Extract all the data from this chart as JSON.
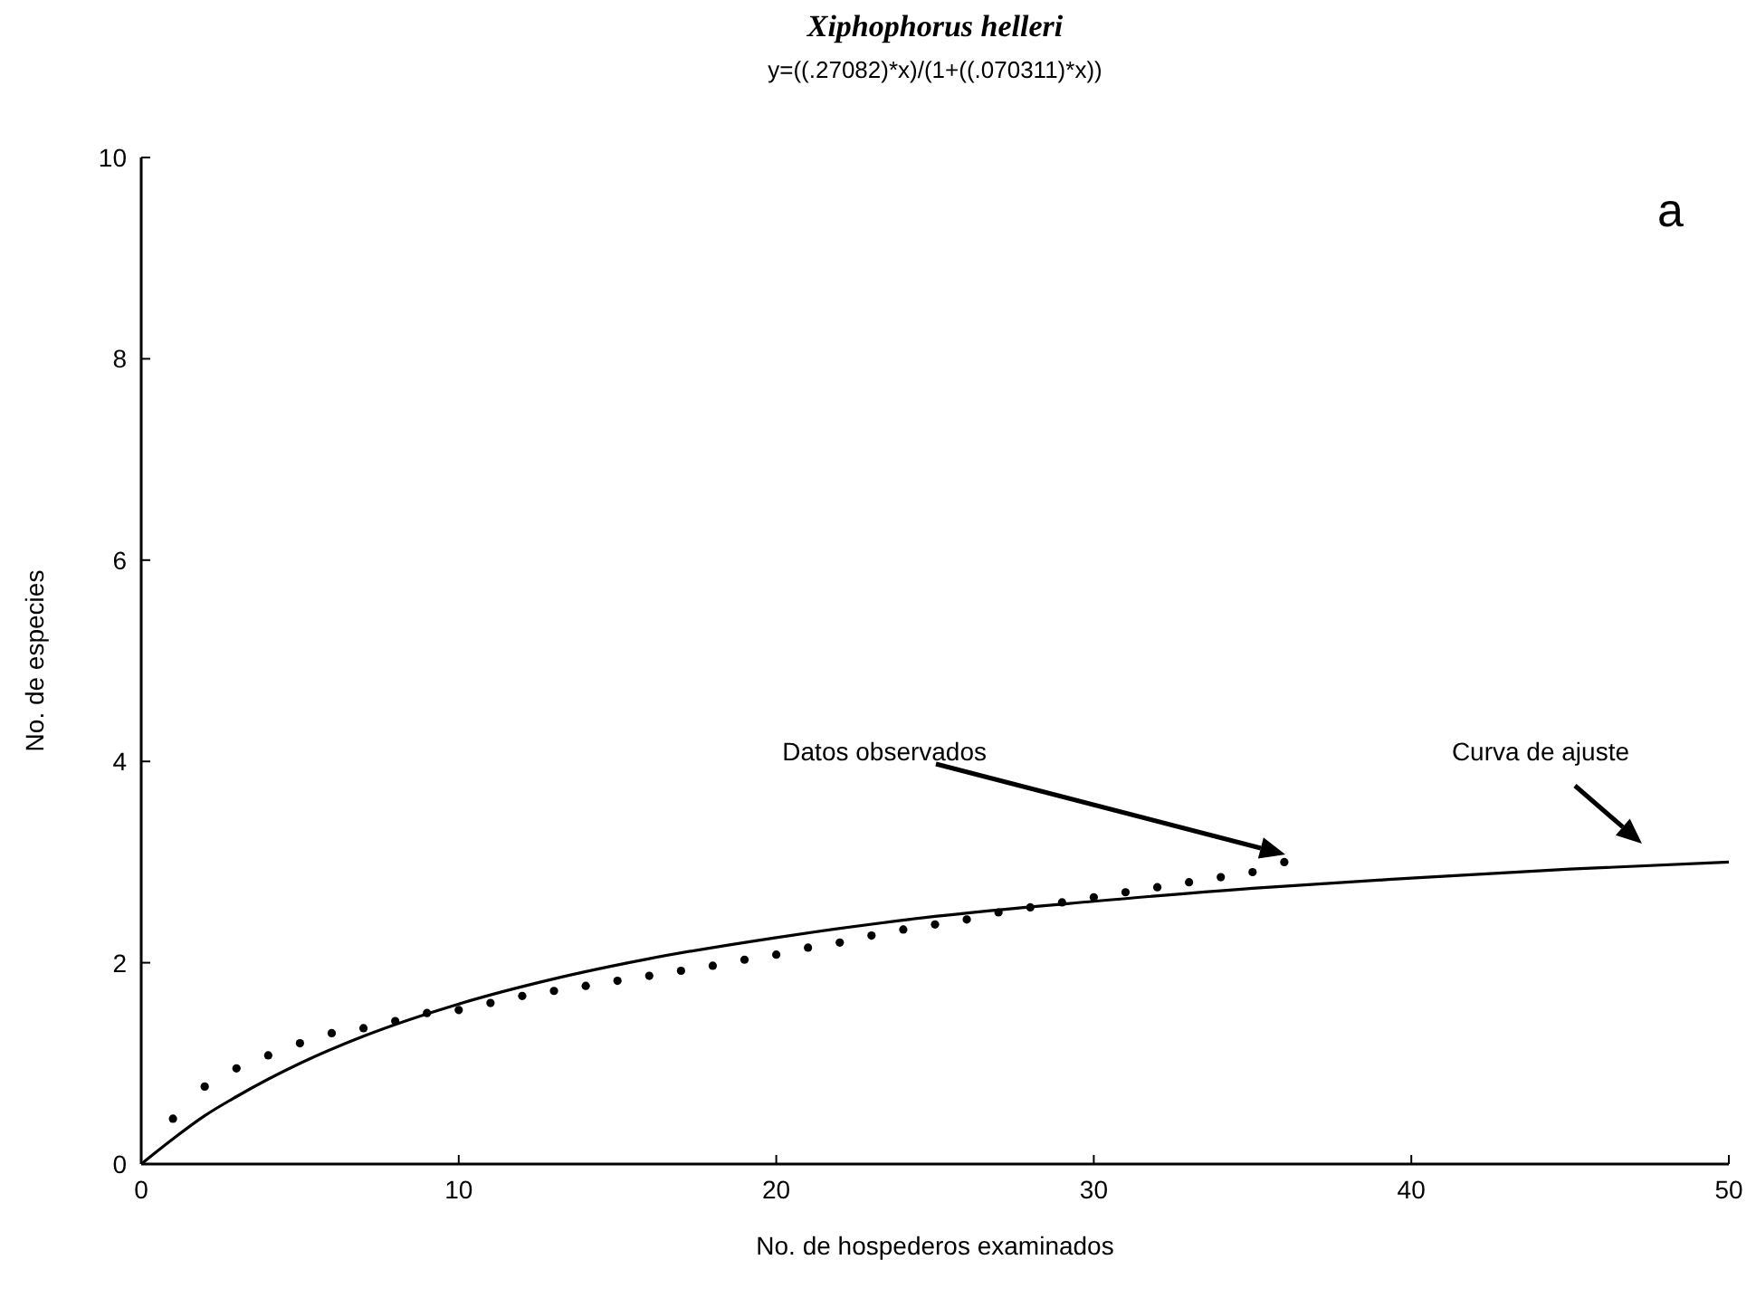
{
  "chart_data": {
    "type": "scatter",
    "title": "Xiphophorus helleri",
    "subtitle": "y=((.27082)*x)/(1+((.070311)*x))",
    "xlabel": "No. de hospederos examinados",
    "ylabel": "No. de especies",
    "xlim": [
      0,
      50
    ],
    "xticks": [
      0,
      10,
      20,
      30,
      40,
      50
    ],
    "ylim": [
      0,
      10
    ],
    "yticks": [
      0,
      2,
      4,
      6,
      8,
      10
    ],
    "grid": false,
    "series": [
      {
        "type": "scatter",
        "color": "#000000",
        "marker": "circle",
        "x": [
          1,
          2,
          3,
          4,
          5,
          6,
          7,
          8,
          9,
          10,
          11,
          12,
          13,
          14,
          15,
          16,
          17,
          18,
          19,
          20,
          21,
          22,
          23,
          24,
          25,
          26,
          27,
          28,
          29,
          30,
          31,
          32,
          33,
          34,
          35,
          36
        ],
        "values": [
          0.45,
          0.77,
          0.95,
          1.08,
          1.2,
          1.3,
          1.35,
          1.42,
          1.5,
          1.53,
          1.6,
          1.67,
          1.72,
          1.77,
          1.82,
          1.87,
          1.92,
          1.97,
          2.03,
          2.08,
          2.15,
          2.2,
          2.27,
          2.33,
          2.38,
          2.43,
          2.5,
          2.55,
          2.6,
          2.65,
          2.7,
          2.75,
          2.8,
          2.85,
          2.9,
          3.0
        ]
      },
      {
        "type": "line",
        "color": "#000000",
        "line_style": "solid",
        "x": [
          0,
          1,
          2,
          3,
          5,
          7,
          10,
          13,
          16,
          20,
          25,
          30,
          35,
          40,
          45,
          50
        ],
        "values": [
          0,
          0.25,
          0.48,
          0.67,
          1.0,
          1.27,
          1.59,
          1.84,
          2.04,
          2.25,
          2.46,
          2.61,
          2.74,
          2.84,
          2.93,
          3.0
        ]
      }
    ],
    "annotations": [
      "Datos observados",
      "Curva de ajuste",
      "a"
    ]
  }
}
